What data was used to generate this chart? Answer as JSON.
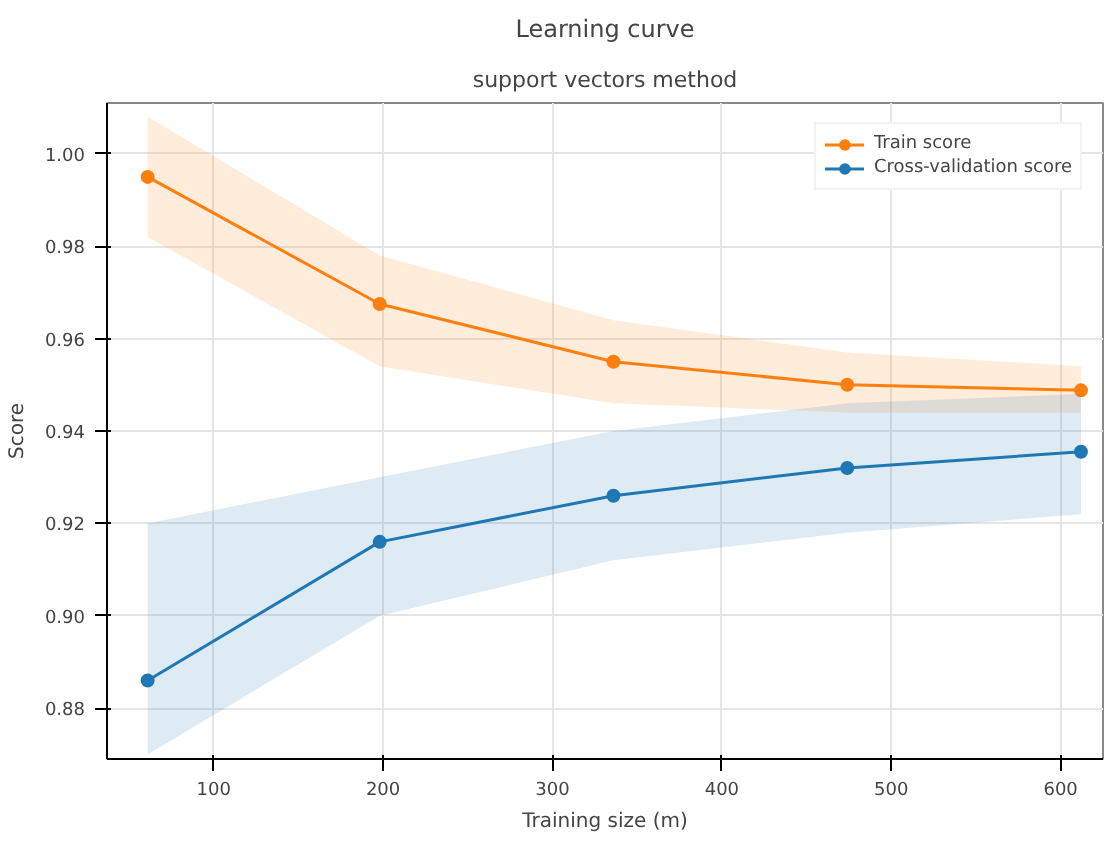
{
  "chart_data": {
    "type": "line",
    "title": "Learning curve",
    "subtitle": "support vectors method",
    "xlabel": "Training size (m)",
    "ylabel": "Score",
    "x": [
      61,
      198,
      336,
      474,
      612
    ],
    "series": [
      {
        "name": "Train score",
        "color": "#ff7f0e",
        "values": [
          0.995,
          0.9675,
          0.955,
          0.95,
          0.9488
        ],
        "lower": [
          0.982,
          0.954,
          0.946,
          0.944,
          0.944
        ],
        "upper": [
          1.008,
          0.978,
          0.964,
          0.957,
          0.954
        ]
      },
      {
        "name": "Cross-validation score",
        "color": "#1f77b4",
        "values": [
          0.886,
          0.916,
          0.926,
          0.932,
          0.9355
        ],
        "lower": [
          0.87,
          0.9,
          0.912,
          0.918,
          0.922
        ],
        "upper": [
          0.92,
          0.93,
          0.94,
          0.946,
          0.948
        ]
      }
    ],
    "xlim": [
      37,
      625
    ],
    "ylim": [
      0.869,
      1.011
    ],
    "xticks": [
      100,
      200,
      300,
      400,
      500,
      600
    ],
    "yticks": [
      {
        "value": 0.88,
        "label": "0.88"
      },
      {
        "value": 0.9,
        "label": "0.90"
      },
      {
        "value": 0.92,
        "label": "0.92"
      },
      {
        "value": 0.94,
        "label": "0.94"
      },
      {
        "value": 0.96,
        "label": "0.96"
      },
      {
        "value": 0.98,
        "label": "0.98"
      },
      {
        "value": 1.0,
        "label": "1.00"
      }
    ],
    "grid": true,
    "legend": "top right",
    "marker": "circle",
    "line_style": "solid"
  }
}
